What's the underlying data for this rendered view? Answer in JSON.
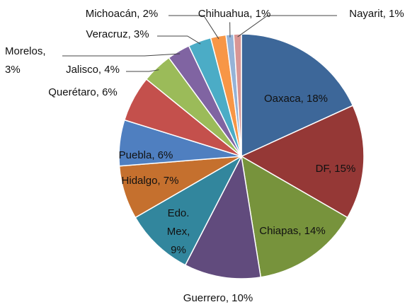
{
  "chart_data": {
    "type": "pie",
    "values": [
      18,
      15,
      14,
      10,
      9,
      7,
      6,
      6,
      4,
      3,
      3,
      2,
      1,
      1
    ],
    "value_labels": [
      "Oaxaca, 18%",
      "DF, 15%",
      "Chiapas, 14%",
      "Guerrero, 10%",
      "Edo. Mex, 9%",
      "Hidalgo, 7%",
      "Puebla, 6%",
      "Querétaro, 6%",
      "Jalisco, 4%",
      "Morelos, 3%",
      "Veracruz, 3%",
      "Michoacán, 2%",
      "Chihuahua, 1%",
      "Nayarit, 1%"
    ],
    "colors": [
      "#3d6799",
      "#953836",
      "#77933c",
      "#614b7d",
      "#32869d",
      "#c5702e",
      "#4f7fc0",
      "#c4504c",
      "#9bbb59",
      "#8064a2",
      "#4bacc6",
      "#f79646",
      "#95b3d7",
      "#d99694"
    ]
  }
}
